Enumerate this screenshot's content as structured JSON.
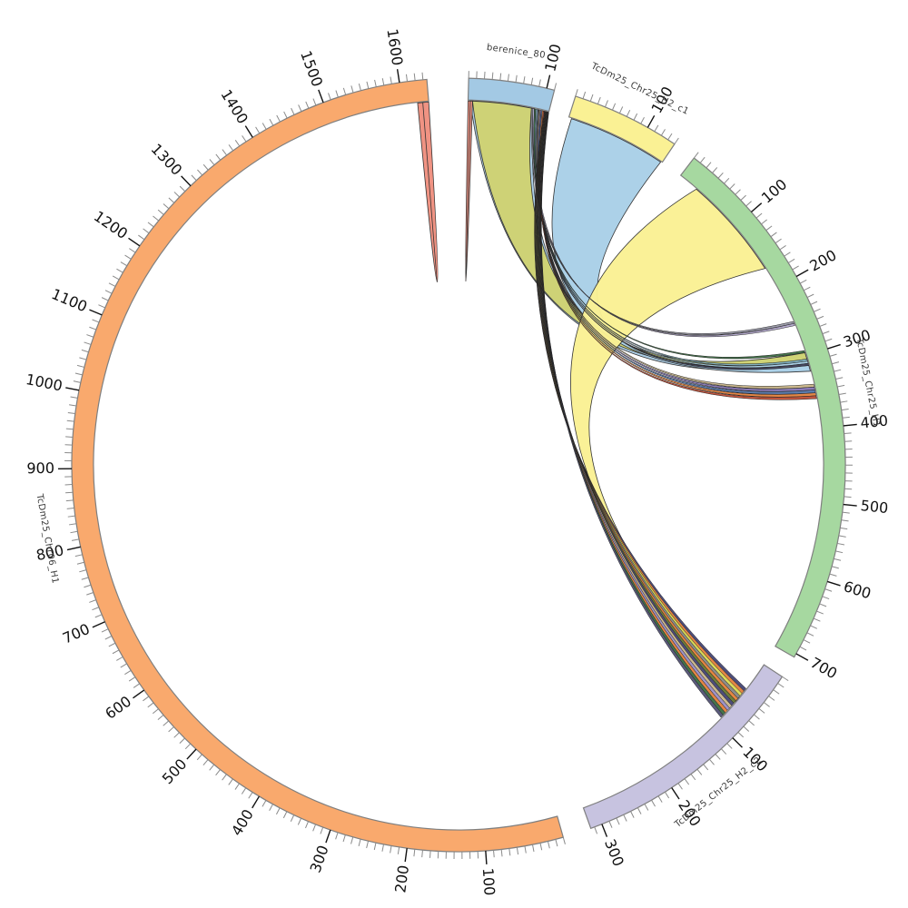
{
  "figure": {
    "background": "#ffffff",
    "description": "Circos-style circular synteny plot with five chromosome segments and alignment ribbons"
  },
  "chart_data": {
    "type": "chord",
    "layout": {
      "center": [
        505,
        512
      ],
      "outer_radius": 426,
      "inner_radius": 402,
      "ribbon_radius": 401,
      "minor_tick_step": 10,
      "major_tick_step": 100,
      "tick_label_radius": 445,
      "segment_label_radius": 460
    },
    "segments": [
      {
        "id": "berenice_80",
        "label": "berenice_80",
        "color": "#a3c9e4",
        "length": 110,
        "start": 1.5,
        "end": 14.35,
        "tick_labels": [
          "100"
        ]
      },
      {
        "id": "chr25_h2_c1",
        "label": "TcDm25_Chr25_H2_c1",
        "color": "#faf194",
        "length": 140,
        "start": 17.6,
        "end": 33.95,
        "tick_labels": [
          "100"
        ]
      },
      {
        "id": "chr25_h1",
        "label": "TcDm25_Chr25_H1",
        "color": "#a6d8a0",
        "length": 705,
        "start": 37.5,
        "end": 119.8,
        "tick_labels": [
          "100",
          "200",
          "300",
          "400",
          "500",
          "600",
          "700"
        ]
      },
      {
        "id": "chr25_h2_c2",
        "label": "TcDm25_Chr25_H2_c2",
        "color": "#c7c3e0",
        "length": 315,
        "start": 123.2,
        "end": 160.0,
        "tick_labels": [
          "100",
          "200",
          "300"
        ]
      },
      {
        "id": "chr06_h1",
        "label": "TcDm25_Chr06_H1",
        "color": "#f9a96d",
        "length": 1635,
        "start": 164.3,
        "end": 355.3,
        "tick_labels": [
          "100",
          "200",
          "300",
          "400",
          "500",
          "600",
          "700",
          "800",
          "900",
          "1000",
          "1100",
          "1200",
          "1300",
          "1400",
          "1500",
          "1600"
        ]
      }
    ],
    "links": [
      {
        "id": "olive-edge",
        "color": "#aacde6",
        "source": {
          "seg": "berenice_80",
          "s": 3,
          "e": 90
        },
        "target": {
          "seg": "chr25_h1",
          "s": 305,
          "e": 312
        },
        "ctrl": [
          562,
          452
        ]
      },
      {
        "id": "olive-main",
        "color": "#ced272",
        "source": {
          "seg": "berenice_80",
          "s": 6,
          "e": 86
        },
        "target": {
          "seg": "chr25_h1",
          "s": 296,
          "e": 305
        },
        "ctrl": [
          560,
          450
        ]
      },
      {
        "id": "blue-main",
        "color": "#a9cfe7",
        "source": {
          "seg": "chr25_h2_c1",
          "s": 4,
          "e": 138
        },
        "target": {
          "seg": "chr25_h1",
          "s": 314,
          "e": 322
        },
        "ctrl": [
          530,
          430
        ]
      },
      {
        "id": "yellow-main",
        "color": "#faf194",
        "source": {
          "seg": "chr25_h1",
          "s": 28,
          "e": 170
        },
        "target": {
          "seg": "chr25_h2_c2",
          "s": 55,
          "e": 63
        },
        "ctrl": [
          470,
          390
        ]
      },
      {
        "id": "salmon-left",
        "color": "#f0907f",
        "source": {
          "seg": "chr06_h1",
          "s": 1620,
          "e": 1627
        },
        "target": {
          "seg": "chr06_h1",
          "s": 1627,
          "e": 1635
        },
        "ctrl": [
          497,
          508
        ]
      },
      {
        "id": "salmon-right",
        "color": "#f0907f",
        "source": {
          "seg": "berenice_80",
          "s": 0,
          "e": 3
        },
        "target": {
          "seg": "berenice_80",
          "s": 3,
          "e": 6
        },
        "ctrl": [
          508,
          508
        ]
      },
      {
        "id": "strip-gray",
        "color": "#9a9aa8",
        "source": {
          "seg": "berenice_80",
          "s": 86,
          "e": 88
        },
        "target": {
          "seg": "chr25_h1",
          "s": 251,
          "e": 254
        },
        "ctrl": [
          575,
          425
        ]
      },
      {
        "id": "strip-lavender",
        "color": "#b3a8cc",
        "source": {
          "seg": "berenice_80",
          "s": 88,
          "e": 90
        },
        "target": {
          "seg": "chr25_h1",
          "s": 254,
          "e": 257
        },
        "ctrl": [
          577,
          427
        ]
      },
      {
        "id": "strip-darkgreen",
        "color": "#3f7046",
        "source": {
          "seg": "berenice_80",
          "s": 90,
          "e": 92
        },
        "target": {
          "seg": "chr25_h1",
          "s": 293,
          "e": 296
        },
        "ctrl": [
          572,
          438
        ]
      },
      {
        "id": "strip-teal",
        "color": "#7fb0c0",
        "source": {
          "seg": "berenice_80",
          "s": 92,
          "e": 93.5
        },
        "target": {
          "seg": "chr25_h1",
          "s": 305,
          "e": 308
        },
        "ctrl": [
          570,
          440
        ]
      },
      {
        "id": "strip-lightblue",
        "color": "#a9cfe5",
        "source": {
          "seg": "berenice_80",
          "s": 93.5,
          "e": 95
        },
        "target": {
          "seg": "chr25_h1",
          "s": 308,
          "e": 311
        },
        "ctrl": [
          568,
          442
        ]
      },
      {
        "id": "strip-darkslate",
        "color": "#45455e",
        "source": {
          "seg": "berenice_80",
          "s": 95,
          "e": 96.5
        },
        "target": {
          "seg": "chr25_h1",
          "s": 311,
          "e": 314
        },
        "ctrl": [
          566,
          444
        ]
      },
      {
        "id": "strip-tan",
        "color": "#c9b68a",
        "source": {
          "seg": "berenice_80",
          "s": 96.5,
          "e": 98
        },
        "target": {
          "seg": "chr25_h1",
          "s": 340,
          "e": 344
        },
        "ctrl": [
          564,
          452
        ]
      },
      {
        "id": "strip-purple",
        "color": "#8878b8",
        "source": {
          "seg": "berenice_80",
          "s": 98,
          "e": 99.5
        },
        "target": {
          "seg": "chr25_h1",
          "s": 344,
          "e": 348
        },
        "ctrl": [
          562,
          454
        ]
      },
      {
        "id": "strip-steelblue",
        "color": "#5577aa",
        "source": {
          "seg": "berenice_80",
          "s": 99.5,
          "e": 101
        },
        "target": {
          "seg": "chr25_h1",
          "s": 348,
          "e": 352
        },
        "ctrl": [
          560,
          456
        ]
      },
      {
        "id": "strip-orange",
        "color": "#e2823f",
        "source": {
          "seg": "berenice_80",
          "s": 101,
          "e": 102.5
        },
        "target": {
          "seg": "chr25_h1",
          "s": 352,
          "e": 356
        },
        "ctrl": [
          558,
          458
        ]
      },
      {
        "id": "strip-red",
        "color": "#bf5038",
        "source": {
          "seg": "berenice_80",
          "s": 102.5,
          "e": 104
        },
        "target": {
          "seg": "chr25_h1",
          "s": 356,
          "e": 360
        },
        "ctrl": [
          556,
          460
        ]
      },
      {
        "id": "pstrip-1",
        "color": "#474777",
        "source": {
          "seg": "berenice_80",
          "s": 104,
          "e": 104.5
        },
        "target": {
          "seg": "chr25_h2_c2",
          "s": 40,
          "e": 44.3
        },
        "ctrl": [
          538,
          492
        ]
      },
      {
        "id": "pstrip-2",
        "color": "#e2823f",
        "source": {
          "seg": "berenice_80",
          "s": 104.5,
          "e": 105
        },
        "target": {
          "seg": "chr25_h2_c2",
          "s": 44.3,
          "e": 48.6
        },
        "ctrl": [
          540,
          493
        ]
      },
      {
        "id": "pstrip-3",
        "color": "#d8d855",
        "source": {
          "seg": "berenice_80",
          "s": 105,
          "e": 105.5
        },
        "target": {
          "seg": "chr25_h2_c2",
          "s": 48.6,
          "e": 52.9
        },
        "ctrl": [
          542,
          494
        ]
      },
      {
        "id": "pstrip-4",
        "color": "#8a8a8a",
        "source": {
          "seg": "berenice_80",
          "s": 105.5,
          "e": 106
        },
        "target": {
          "seg": "chr25_h2_c2",
          "s": 52.9,
          "e": 57.2
        },
        "ctrl": [
          544,
          495
        ]
      },
      {
        "id": "pstrip-5",
        "color": "#e2823f",
        "source": {
          "seg": "berenice_80",
          "s": 106,
          "e": 106.5
        },
        "target": {
          "seg": "chr25_h2_c2",
          "s": 57.2,
          "e": 61.5
        },
        "ctrl": [
          546,
          496
        ]
      },
      {
        "id": "pstrip-6",
        "color": "#6a7a35",
        "source": {
          "seg": "berenice_80",
          "s": 106.5,
          "e": 107
        },
        "target": {
          "seg": "chr25_h2_c2",
          "s": 61.5,
          "e": 65.8
        },
        "ctrl": [
          548,
          497
        ]
      },
      {
        "id": "pstrip-7",
        "color": "#474777",
        "source": {
          "seg": "berenice_80",
          "s": 107,
          "e": 107.5
        },
        "target": {
          "seg": "chr25_h2_c2",
          "s": 65.8,
          "e": 70.1
        },
        "ctrl": [
          550,
          498
        ]
      },
      {
        "id": "pstrip-8",
        "color": "#c9b68a",
        "source": {
          "seg": "berenice_80",
          "s": 107.5,
          "e": 108
        },
        "target": {
          "seg": "chr25_h2_c2",
          "s": 70.1,
          "e": 74.4
        },
        "ctrl": [
          552,
          499
        ]
      },
      {
        "id": "pstrip-9",
        "color": "#9b8ec4",
        "source": {
          "seg": "berenice_80",
          "s": 108,
          "e": 108.5
        },
        "target": {
          "seg": "chr25_h2_c2",
          "s": 74.4,
          "e": 78.7
        },
        "ctrl": [
          553,
          500
        ]
      },
      {
        "id": "pstrip-10",
        "color": "#e2823f",
        "source": {
          "seg": "berenice_80",
          "s": 108.5,
          "e": 109
        },
        "target": {
          "seg": "chr25_h2_c2",
          "s": 78.7,
          "e": 83.0
        },
        "ctrl": [
          554,
          501
        ]
      },
      {
        "id": "pstrip-11",
        "color": "#3f7046",
        "source": {
          "seg": "berenice_80",
          "s": 109,
          "e": 109.5
        },
        "target": {
          "seg": "chr25_h2_c2",
          "s": 83.0,
          "e": 87.3
        },
        "ctrl": [
          555,
          502
        ]
      },
      {
        "id": "pstrip-12",
        "color": "#555577",
        "source": {
          "seg": "berenice_80",
          "s": 109.5,
          "e": 110
        },
        "target": {
          "seg": "chr25_h2_c2",
          "s": 87.3,
          "e": 91.6
        },
        "ctrl": [
          556,
          503
        ]
      }
    ],
    "styles": {
      "band_stroke": "#7f7f7f",
      "minor_tick_color": "#8a8a8a",
      "major_tick_color": "#111111",
      "ribbon_stroke": "#333333",
      "strip_stroke": "#222222"
    }
  }
}
